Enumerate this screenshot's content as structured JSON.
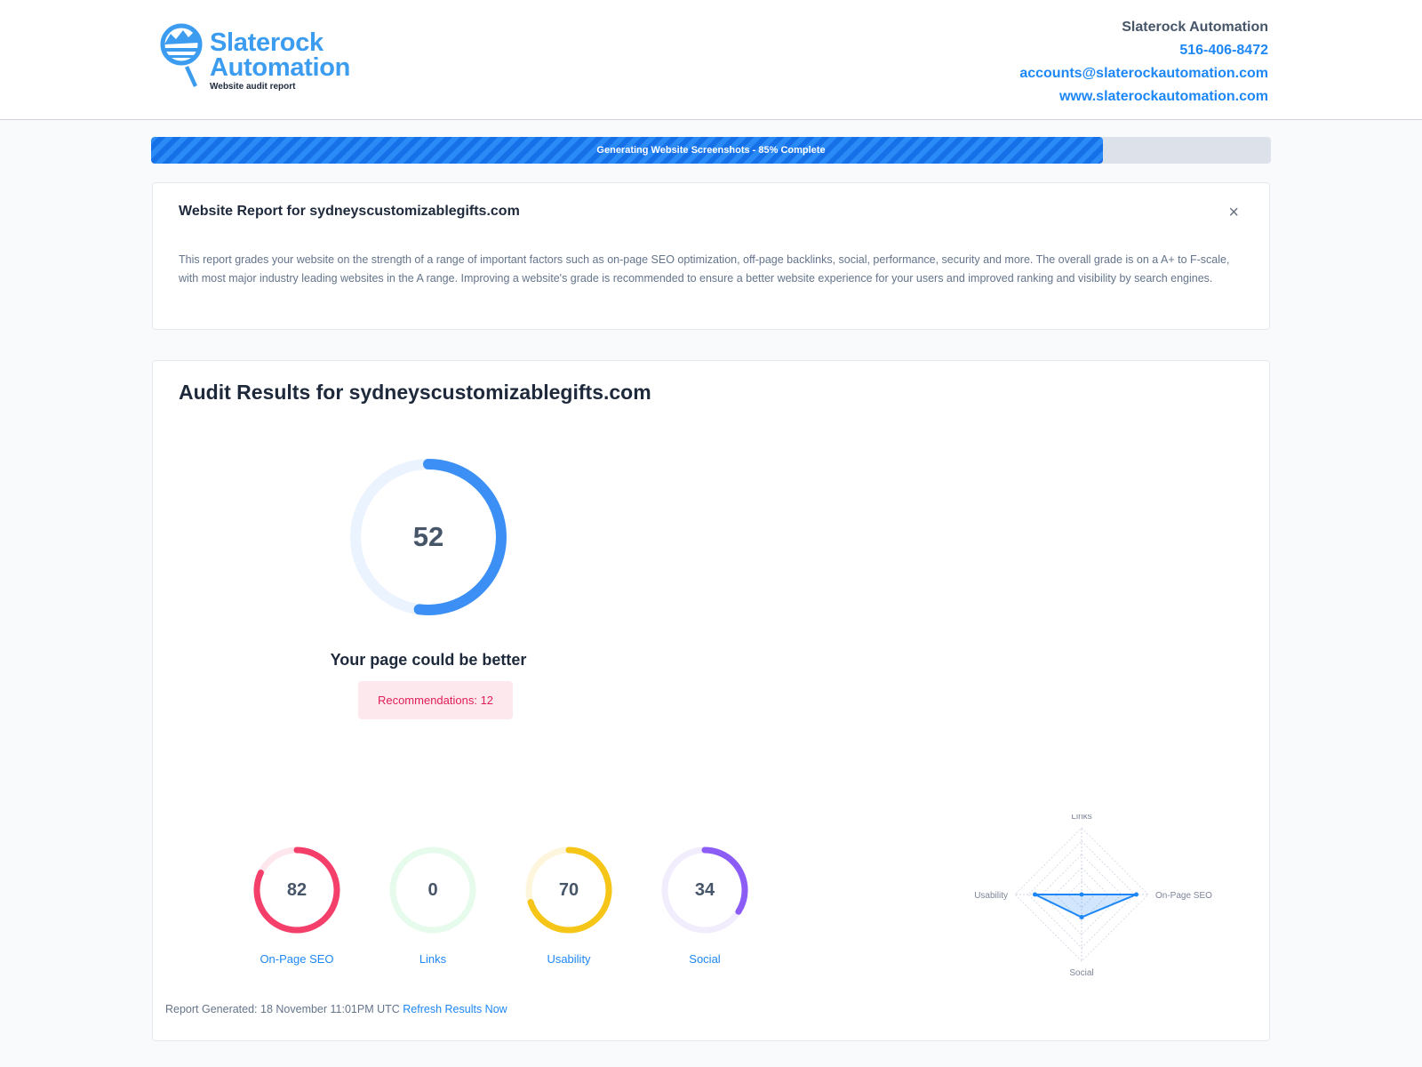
{
  "header": {
    "brand_line1": "Slaterock",
    "brand_line2": "Automation",
    "brand_tagline": "Website audit report",
    "company": "Slaterock Automation",
    "phone": "516-406-8472",
    "email": "accounts@slaterockautomation.com",
    "website": "www.slaterockautomation.com"
  },
  "progress": {
    "label": "Generating Website Screenshots - 85% Complete",
    "percent": 85
  },
  "intro": {
    "title": "Website Report for sydneyscustomizablegifts.com",
    "close_icon": "×",
    "description": "This report grades your website on the strength of a range of important factors such as on-page SEO optimization, off-page backlinks, social, performance, security and more. The overall grade is on a A+ to F-scale, with most major industry leading websites in the A range. Improving a website's grade is recommended to ensure a better website experience for your users and improved ranking and visibility by search engines."
  },
  "audit": {
    "title": "Audit Results for sydneyscustomizablegifts.com",
    "score": "52",
    "score_value": 52,
    "verdict": "Your page could be better",
    "recommendations": "Recommendations: 12",
    "categories": [
      {
        "label": "On-Page SEO",
        "score": "82",
        "value": 82,
        "color": "#f43f6b",
        "track": "#fde7ec"
      },
      {
        "label": "Links",
        "score": "0",
        "value": 0,
        "color": "#22c55e",
        "track": "#e6fbec"
      },
      {
        "label": "Usability",
        "score": "70",
        "value": 70,
        "color": "#f5c518",
        "track": "#fdf6dc"
      },
      {
        "label": "Social",
        "score": "34",
        "value": 34,
        "color": "#8b5cf6",
        "track": "#f1edfd"
      }
    ],
    "footer_text": "Report Generated: 18 November 11:01PM UTC",
    "refresh_label": "Refresh Results Now"
  },
  "chart_data": {
    "type": "radar",
    "axes": [
      "Links",
      "On-Page SEO",
      "Social",
      "Usability"
    ],
    "values": [
      0,
      82,
      34,
      70
    ],
    "range": [
      0,
      100
    ],
    "rings": 5,
    "color": "#1d87f5"
  }
}
